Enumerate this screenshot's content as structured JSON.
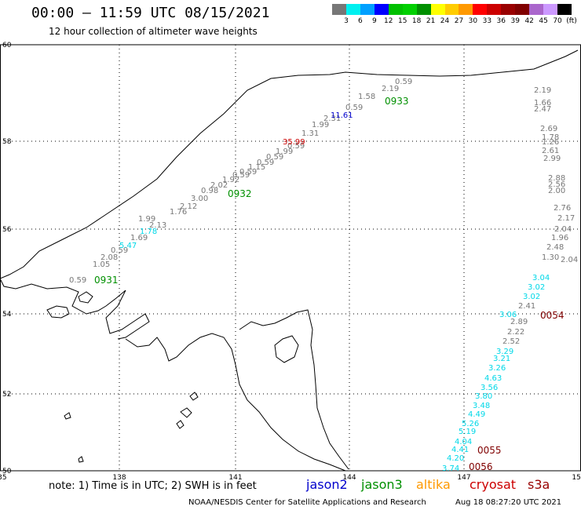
{
  "header": {
    "title": "00:00 – 11:59 UTC 08/15/2021",
    "subtitle": "12 hour collection of altimeter wave heights"
  },
  "colorbar": {
    "colors": [
      "#777777",
      "#00f0f0",
      "#00a0ff",
      "#0000ff",
      "#00c000",
      "#00d000",
      "#009000",
      "#ffff00",
      "#ffcc00",
      "#ff9900",
      "#ff0000",
      "#cc0000",
      "#990000",
      "#800000",
      "#aa66cc",
      "#cc99ff",
      "#000000"
    ],
    "labels": [
      "3",
      "6",
      "9",
      "12",
      "15",
      "18",
      "21",
      "24",
      "27",
      "30",
      "33",
      "36",
      "39",
      "42",
      "45",
      "70",
      "(ft)"
    ]
  },
  "axes": {
    "lat_ticks": [
      "60",
      "58",
      "56",
      "54",
      "52",
      "50"
    ],
    "lon_ticks": [
      "135",
      "138",
      "141",
      "144",
      "147",
      "150"
    ],
    "lat_range": [
      50,
      60
    ],
    "lon_range": [
      135,
      150
    ]
  },
  "tracks": {
    "gray_track_a": [
      "0.59",
      "1.05",
      "2.08",
      "0.59",
      "1.69",
      "1.99",
      "2.13",
      "1.76",
      "2.12",
      "3.00",
      "0.98",
      "2.02",
      "1.92",
      "0.59",
      "0.59",
      "1.15",
      "0.59",
      "0.59",
      "1.99",
      "0.59",
      "1.31",
      "1.99",
      "2.31",
      "0.59",
      "1.58",
      "2.19",
      "0.59"
    ],
    "cyan_track_a": [
      "5.47",
      "1.78"
    ],
    "blue_track": [
      "11.61"
    ],
    "red_track": [
      "35.99"
    ],
    "gray_track_east": [
      "2.19",
      "1.66",
      "2.47",
      "2.69",
      "1.78",
      "1.26",
      "2.61",
      "2.99",
      "2.88",
      "2.56",
      "2.00",
      "2.76",
      "2.17",
      "2.04",
      "1.96",
      "2.41",
      "2.89",
      "2.22",
      "2.52",
      "2.48",
      "1.30",
      "2.04"
    ],
    "cyan_track_south": [
      "3.04",
      "3.02",
      "3.02",
      "3.06",
      "3.29",
      "3.21",
      "3.26",
      "4.63",
      "3.56",
      "3.80",
      "3.48",
      "4.49",
      "5.26",
      "5.19",
      "4.04",
      "4.41",
      "4.20",
      "3.74"
    ],
    "time_labels": [
      "0931",
      "0932",
      "0933",
      "0054",
      "0055",
      "0056"
    ]
  },
  "notes": {
    "note": "note: 1) Time is in UTC; 2) SWH is in feet",
    "legend": [
      {
        "label": "jason2",
        "color": "#0000cc"
      },
      {
        "label": "jason3",
        "color": "#009000"
      },
      {
        "label": "altika",
        "color": "#ff9900"
      },
      {
        "label": "cryosat",
        "color": "#cc0000"
      },
      {
        "label": "s3a",
        "color": "#990000"
      }
    ],
    "credit": "NOAA/NESDIS Center for Satellite Applications and Research",
    "timestamp": "Aug 18 08:27:20 UTC 2021"
  }
}
